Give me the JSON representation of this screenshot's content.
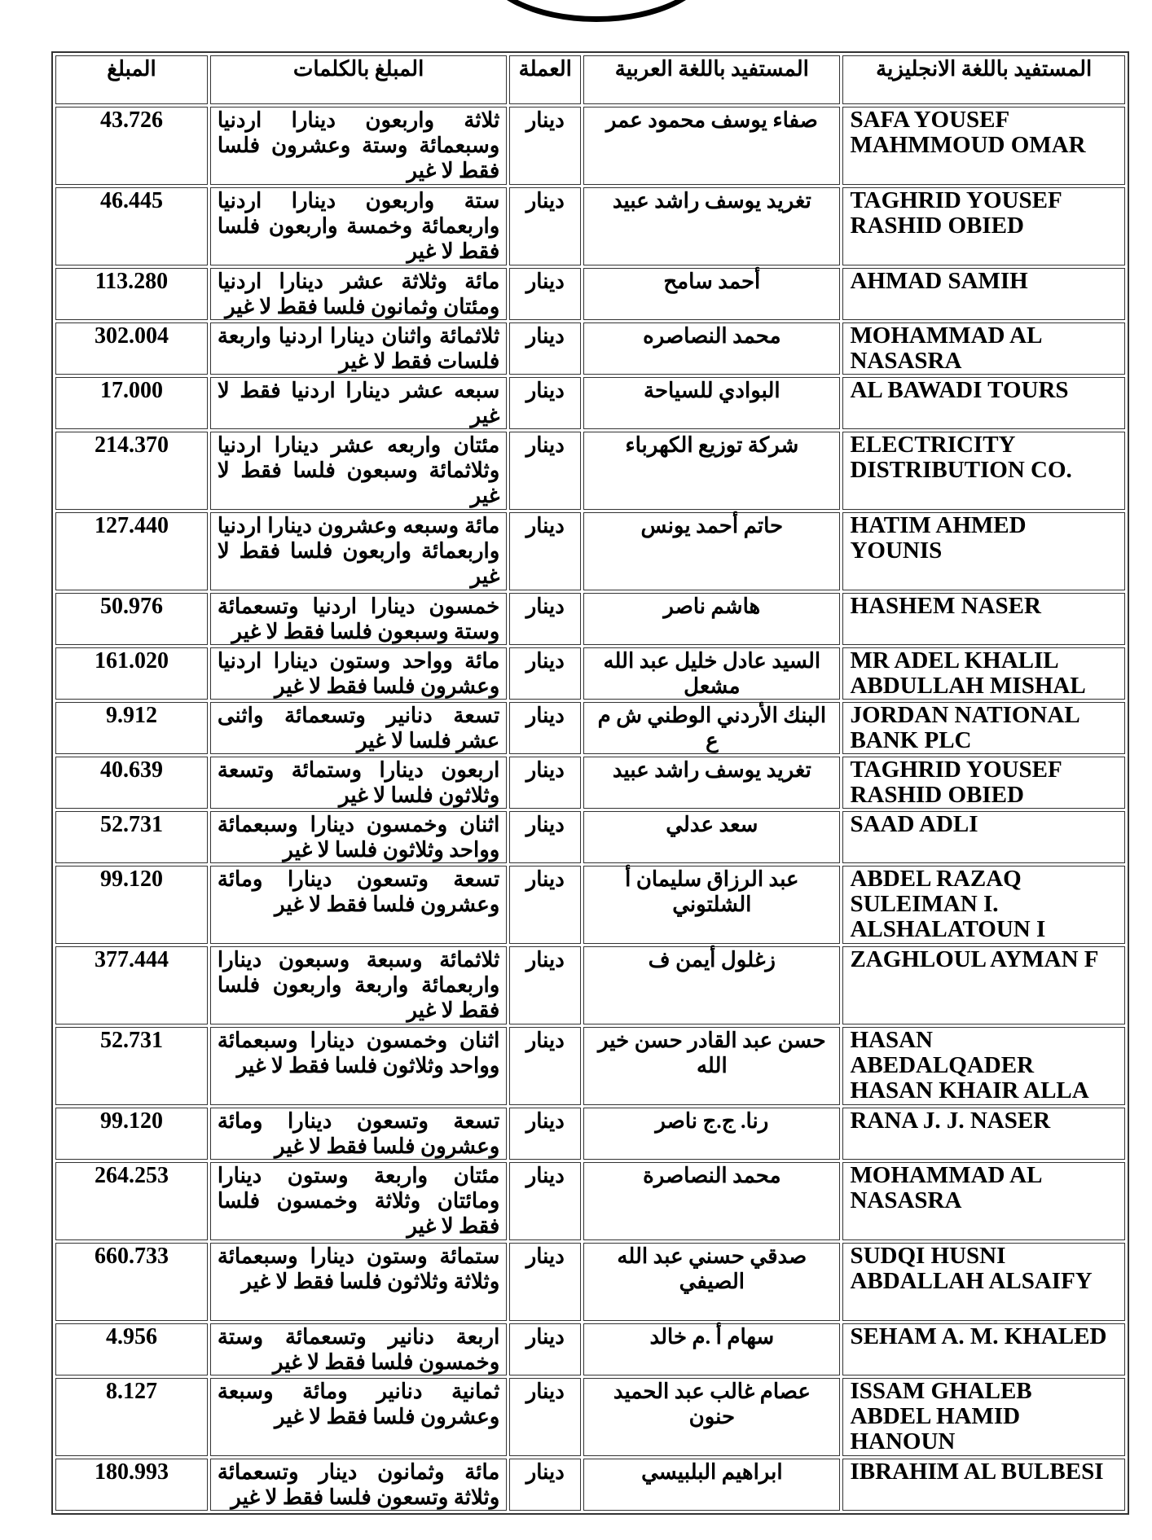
{
  "headers": {
    "amount": "المبلغ",
    "words": "المبلغ بالكلمات",
    "currency": "العملة",
    "arabic": "المستفيد باللغة العربية",
    "english": "المستفيد باللغة الانجليزية"
  },
  "rows": [
    {
      "amount": "43.726",
      "words": "ثلاثة واربعون دينارا اردنيا وسبعمائة وستة وعشرون فلسا فقط لا غير",
      "currency": "دينار",
      "arabic": "صفاء يوسف محمود عمر",
      "english": "SAFA YOUSEF MAHMMOUD OMAR",
      "lines": 3
    },
    {
      "amount": "46.445",
      "words": "ستة واربعون دينارا اردنيا واربعمائة وخمسة واربعون فلسا فقط لا غير",
      "currency": "دينار",
      "arabic": "تغريد يوسف راشد عبيد",
      "english": "TAGHRID YOUSEF RASHID OBIED",
      "lines": 3
    },
    {
      "amount": "113.280",
      "words": "مائة وثلاثة عشر دينارا اردنيا ومئتان وثمانون فلسا فقط لا غير",
      "currency": "دينار",
      "arabic": "أحمد سامح",
      "english": "AHMAD SAMIH",
      "lines": 2
    },
    {
      "amount": "302.004",
      "words": "ثلاثمائة واثنان دينارا اردنيا واربعة فلسات فقط لا غير",
      "currency": "دينار",
      "arabic": "محمد النصاصره",
      "english": "MOHAMMAD AL NASASRA",
      "lines": 2
    },
    {
      "amount": "17.000",
      "words": "سبعه عشر دينارا اردنيا فقط لا غير",
      "currency": "دينار",
      "arabic": "البوادي للسياحة",
      "english": "AL BAWADI TOURS",
      "lines": 2
    },
    {
      "amount": "214.370",
      "words": "مئتان واربعه عشر دينارا اردنيا وثلاثمائة وسبعون فلسا فقط لا غير",
      "currency": "دينار",
      "arabic": "شركة توزيع الكهرباء",
      "english": "ELECTRICITY DISTRIBUTION CO.",
      "lines": 3
    },
    {
      "amount": "127.440",
      "words": "مائة وسبعه وعشرون دينارا اردنيا واربعمائة واربعون فلسا فقط لا غير",
      "currency": "دينار",
      "arabic": "حاتم أحمد يونس",
      "english": "HATIM AHMED YOUNIS",
      "lines": 3
    },
    {
      "amount": "50.976",
      "words": "خمسون دينارا اردنيا وتسعمائة وستة وسبعون فلسا فقط لا غير",
      "currency": "دينار",
      "arabic": "هاشم ناصر",
      "english": "HASHEM NASER",
      "lines": 2
    },
    {
      "amount": "161.020",
      "words": "مائة وواحد وستون دينارا اردنيا وعشرون فلسا فقط لا غير",
      "currency": "دينار",
      "arabic": "السيد عادل خليل عبد الله مشعل",
      "english": "MR ADEL KHALIL ABDULLAH MISHAL",
      "lines": 2
    },
    {
      "amount": "9.912",
      "words": "تسعة دنانير وتسعمائة واثنى عشر فلسا لا غير",
      "currency": "دينار",
      "arabic": "البنك الأردني الوطني ش م ع",
      "english": "JORDAN NATIONAL BANK PLC",
      "lines": 2
    },
    {
      "amount": "40.639",
      "words": "اربعون دينارا وستمائة وتسعة وثلاثون فلسا لا غير",
      "currency": "دينار",
      "arabic": "تغريد يوسف راشد عبيد",
      "english": "TAGHRID YOUSEF RASHID OBIED",
      "lines": 2
    },
    {
      "amount": "52.731",
      "words": "اثنان وخمسون دينارا وسبعمائة وواحد وثلاثون فلسا لا غير",
      "currency": "دينار",
      "arabic": "سعد عدلي",
      "english": "SAAD ADLI",
      "lines": 2
    },
    {
      "amount": "99.120",
      "words": "تسعة وتسعون دينارا ومائة وعشرون فلسا فقط لا غير",
      "currency": "دينار",
      "arabic": "عبد الرزاق سليمان أ الشلتوني",
      "english": "ABDEL RAZAQ SULEIMAN I. ALSHALATOUN I",
      "lines": 3
    },
    {
      "amount": "377.444",
      "words": "ثلاثمائة وسبعة وسبعون دينارا واربعمائة واربعة واربعون فلسا فقط لا غير",
      "currency": "دينار",
      "arabic": "زغلول أيمن ف",
      "english": "ZAGHLOUL AYMAN F",
      "lines": 3
    },
    {
      "amount": "52.731",
      "words": "اثنان وخمسون دينارا وسبعمائة وواحد وثلاثون فلسا فقط لا غير",
      "currency": "دينار",
      "arabic": "حسن عبد القادر حسن خير الله",
      "english": "HASAN ABEDALQADER HASAN KHAIR ALLA",
      "lines": 3
    },
    {
      "amount": "99.120",
      "words": "تسعة وتسعون دينارا ومائة وعشرون فلسا فقط لا غير",
      "currency": "دينار",
      "arabic": "رنا. ج.ج ناصر",
      "english": "RANA J. J. NASER",
      "lines": 2
    },
    {
      "amount": "264.253",
      "words": "مئتان واربعة وستون دينارا ومائتان وثلاثة وخمسون فلسا فقط لا غير",
      "currency": "دينار",
      "arabic": "محمد النصاصرة",
      "english": "MOHAMMAD AL NASASRA",
      "lines": 3
    },
    {
      "amount": "660.733",
      "words": "ستمائة وستون دينارا وسبعمائة وثلاثة وثلاثون فلسا فقط لا غير",
      "currency": "دينار",
      "arabic": "صدقي حسني عبد الله الصيفي",
      "english": "SUDQI HUSNI ABDALLAH ALSAIFY",
      "lines": 3
    },
    {
      "amount": "4.956",
      "words": "اربعة دنانير وتسعمائة وستة وخمسون فلسا فقط لا غير",
      "currency": "دينار",
      "arabic": "سهام أ .م خالد",
      "english": "SEHAM A. M. KHALED",
      "lines": 2
    },
    {
      "amount": "8.127",
      "words": "ثمانية دنانير ومائة وسبعة وعشرون فلسا فقط لا غير",
      "currency": "دينار",
      "arabic": "عصام غالب عبد الحميد حنون",
      "english": "ISSAM GHALEB ABDEL HAMID HANOUN",
      "lines": 3
    },
    {
      "amount": "180.993",
      "words": "مائة وثمانون دينار وتسعمائة وثلاثة وتسعون فلسا فقط لا غير",
      "currency": "دينار",
      "arabic": "ابراهيم البلبيسي",
      "english": "IBRAHIM AL BULBESI",
      "lines": 2
    }
  ]
}
